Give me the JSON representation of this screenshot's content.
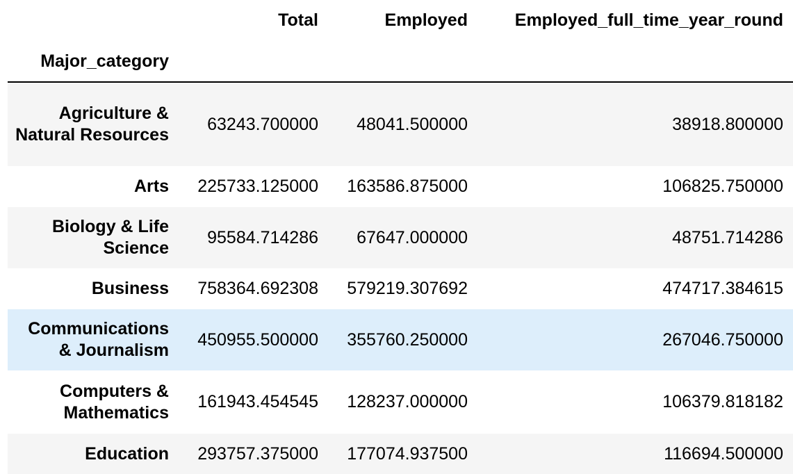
{
  "table": {
    "columns": [
      "Total",
      "Employed",
      "Employed_full_time_year_round"
    ],
    "index_name": "Major_category",
    "rows": [
      {
        "label": "Agriculture & Natural Resources",
        "values": [
          "63243.700000",
          "48041.500000",
          "38918.800000"
        ]
      },
      {
        "label": "Arts",
        "values": [
          "225733.125000",
          "163586.875000",
          "106825.750000"
        ]
      },
      {
        "label": "Biology & Life Science",
        "values": [
          "95584.714286",
          "67647.000000",
          "48751.714286"
        ]
      },
      {
        "label": "Business",
        "values": [
          "758364.692308",
          "579219.307692",
          "474717.384615"
        ]
      },
      {
        "label": "Communications & Journalism",
        "values": [
          "450955.500000",
          "355760.250000",
          "267046.750000"
        ]
      },
      {
        "label": "Computers & Mathematics",
        "values": [
          "161943.454545",
          "128237.000000",
          "106379.818182"
        ]
      },
      {
        "label": "Education",
        "values": [
          "293757.375000",
          "177074.937500",
          "116694.500000"
        ]
      }
    ]
  },
  "colors": {
    "row_stripe": "#f5f5f5",
    "row_hover": "#ddeefb",
    "rule": "#000000"
  }
}
